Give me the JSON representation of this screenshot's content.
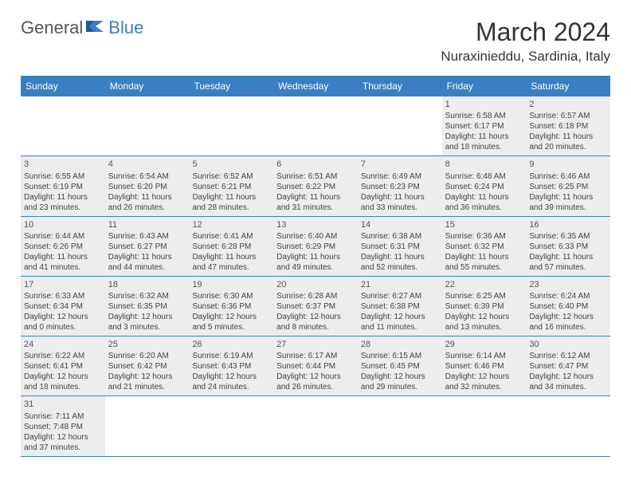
{
  "logo": {
    "part1": "General",
    "part2": "Blue"
  },
  "title": "March 2024",
  "location": "Nuraxinieddu, Sardinia, Italy",
  "colors": {
    "header_bg": "#3a7fc4",
    "header_text": "#ffffff",
    "shaded_bg": "#ededed",
    "border": "#3a7fc4",
    "body_text": "#444444",
    "logo_grey": "#555555",
    "logo_blue": "#3a7fc4"
  },
  "day_names": [
    "Sunday",
    "Monday",
    "Tuesday",
    "Wednesday",
    "Thursday",
    "Friday",
    "Saturday"
  ],
  "weeks": [
    [
      {
        "n": "",
        "sr": "",
        "ss": "",
        "dl": ""
      },
      {
        "n": "",
        "sr": "",
        "ss": "",
        "dl": ""
      },
      {
        "n": "",
        "sr": "",
        "ss": "",
        "dl": ""
      },
      {
        "n": "",
        "sr": "",
        "ss": "",
        "dl": ""
      },
      {
        "n": "",
        "sr": "",
        "ss": "",
        "dl": ""
      },
      {
        "n": "1",
        "sr": "Sunrise: 6:58 AM",
        "ss": "Sunset: 6:17 PM",
        "dl": "Daylight: 11 hours and 18 minutes."
      },
      {
        "n": "2",
        "sr": "Sunrise: 6:57 AM",
        "ss": "Sunset: 6:18 PM",
        "dl": "Daylight: 11 hours and 20 minutes."
      }
    ],
    [
      {
        "n": "3",
        "sr": "Sunrise: 6:55 AM",
        "ss": "Sunset: 6:19 PM",
        "dl": "Daylight: 11 hours and 23 minutes."
      },
      {
        "n": "4",
        "sr": "Sunrise: 6:54 AM",
        "ss": "Sunset: 6:20 PM",
        "dl": "Daylight: 11 hours and 26 minutes."
      },
      {
        "n": "5",
        "sr": "Sunrise: 6:52 AM",
        "ss": "Sunset: 6:21 PM",
        "dl": "Daylight: 11 hours and 28 minutes."
      },
      {
        "n": "6",
        "sr": "Sunrise: 6:51 AM",
        "ss": "Sunset: 6:22 PM",
        "dl": "Daylight: 11 hours and 31 minutes."
      },
      {
        "n": "7",
        "sr": "Sunrise: 6:49 AM",
        "ss": "Sunset: 6:23 PM",
        "dl": "Daylight: 11 hours and 33 minutes."
      },
      {
        "n": "8",
        "sr": "Sunrise: 6:48 AM",
        "ss": "Sunset: 6:24 PM",
        "dl": "Daylight: 11 hours and 36 minutes."
      },
      {
        "n": "9",
        "sr": "Sunrise: 6:46 AM",
        "ss": "Sunset: 6:25 PM",
        "dl": "Daylight: 11 hours and 39 minutes."
      }
    ],
    [
      {
        "n": "10",
        "sr": "Sunrise: 6:44 AM",
        "ss": "Sunset: 6:26 PM",
        "dl": "Daylight: 11 hours and 41 minutes."
      },
      {
        "n": "11",
        "sr": "Sunrise: 6:43 AM",
        "ss": "Sunset: 6:27 PM",
        "dl": "Daylight: 11 hours and 44 minutes."
      },
      {
        "n": "12",
        "sr": "Sunrise: 6:41 AM",
        "ss": "Sunset: 6:28 PM",
        "dl": "Daylight: 11 hours and 47 minutes."
      },
      {
        "n": "13",
        "sr": "Sunrise: 6:40 AM",
        "ss": "Sunset: 6:29 PM",
        "dl": "Daylight: 11 hours and 49 minutes."
      },
      {
        "n": "14",
        "sr": "Sunrise: 6:38 AM",
        "ss": "Sunset: 6:31 PM",
        "dl": "Daylight: 11 hours and 52 minutes."
      },
      {
        "n": "15",
        "sr": "Sunrise: 6:36 AM",
        "ss": "Sunset: 6:32 PM",
        "dl": "Daylight: 11 hours and 55 minutes."
      },
      {
        "n": "16",
        "sr": "Sunrise: 6:35 AM",
        "ss": "Sunset: 6:33 PM",
        "dl": "Daylight: 11 hours and 57 minutes."
      }
    ],
    [
      {
        "n": "17",
        "sr": "Sunrise: 6:33 AM",
        "ss": "Sunset: 6:34 PM",
        "dl": "Daylight: 12 hours and 0 minutes."
      },
      {
        "n": "18",
        "sr": "Sunrise: 6:32 AM",
        "ss": "Sunset: 6:35 PM",
        "dl": "Daylight: 12 hours and 3 minutes."
      },
      {
        "n": "19",
        "sr": "Sunrise: 6:30 AM",
        "ss": "Sunset: 6:36 PM",
        "dl": "Daylight: 12 hours and 5 minutes."
      },
      {
        "n": "20",
        "sr": "Sunrise: 6:28 AM",
        "ss": "Sunset: 6:37 PM",
        "dl": "Daylight: 12 hours and 8 minutes."
      },
      {
        "n": "21",
        "sr": "Sunrise: 6:27 AM",
        "ss": "Sunset: 6:38 PM",
        "dl": "Daylight: 12 hours and 11 minutes."
      },
      {
        "n": "22",
        "sr": "Sunrise: 6:25 AM",
        "ss": "Sunset: 6:39 PM",
        "dl": "Daylight: 12 hours and 13 minutes."
      },
      {
        "n": "23",
        "sr": "Sunrise: 6:24 AM",
        "ss": "Sunset: 6:40 PM",
        "dl": "Daylight: 12 hours and 16 minutes."
      }
    ],
    [
      {
        "n": "24",
        "sr": "Sunrise: 6:22 AM",
        "ss": "Sunset: 6:41 PM",
        "dl": "Daylight: 12 hours and 18 minutes."
      },
      {
        "n": "25",
        "sr": "Sunrise: 6:20 AM",
        "ss": "Sunset: 6:42 PM",
        "dl": "Daylight: 12 hours and 21 minutes."
      },
      {
        "n": "26",
        "sr": "Sunrise: 6:19 AM",
        "ss": "Sunset: 6:43 PM",
        "dl": "Daylight: 12 hours and 24 minutes."
      },
      {
        "n": "27",
        "sr": "Sunrise: 6:17 AM",
        "ss": "Sunset: 6:44 PM",
        "dl": "Daylight: 12 hours and 26 minutes."
      },
      {
        "n": "28",
        "sr": "Sunrise: 6:15 AM",
        "ss": "Sunset: 6:45 PM",
        "dl": "Daylight: 12 hours and 29 minutes."
      },
      {
        "n": "29",
        "sr": "Sunrise: 6:14 AM",
        "ss": "Sunset: 6:46 PM",
        "dl": "Daylight: 12 hours and 32 minutes."
      },
      {
        "n": "30",
        "sr": "Sunrise: 6:12 AM",
        "ss": "Sunset: 6:47 PM",
        "dl": "Daylight: 12 hours and 34 minutes."
      }
    ],
    [
      {
        "n": "31",
        "sr": "Sunrise: 7:11 AM",
        "ss": "Sunset: 7:48 PM",
        "dl": "Daylight: 12 hours and 37 minutes."
      },
      {
        "n": "",
        "sr": "",
        "ss": "",
        "dl": ""
      },
      {
        "n": "",
        "sr": "",
        "ss": "",
        "dl": ""
      },
      {
        "n": "",
        "sr": "",
        "ss": "",
        "dl": ""
      },
      {
        "n": "",
        "sr": "",
        "ss": "",
        "dl": ""
      },
      {
        "n": "",
        "sr": "",
        "ss": "",
        "dl": ""
      },
      {
        "n": "",
        "sr": "",
        "ss": "",
        "dl": ""
      }
    ]
  ]
}
